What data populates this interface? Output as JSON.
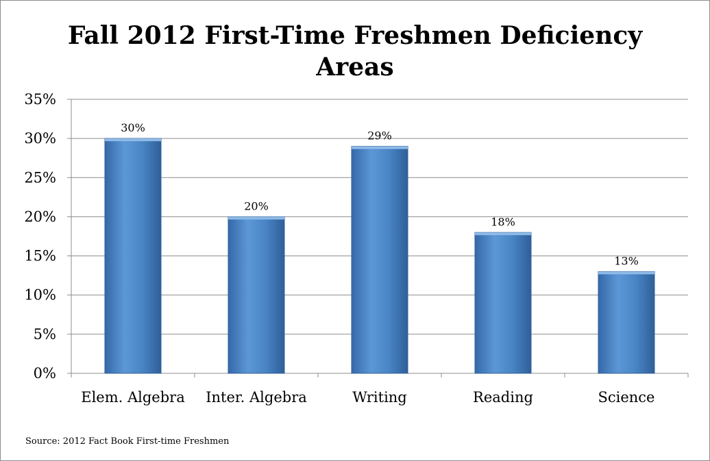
{
  "chart_data": {
    "type": "bar",
    "title_lines": [
      "Fall 2012 First-Time Freshmen Deficiency",
      "Areas"
    ],
    "categories": [
      "Elem. Algebra",
      "Inter. Algebra",
      "Writing",
      "Reading",
      "Science"
    ],
    "values": [
      30,
      20,
      29,
      18,
      13
    ],
    "data_labels": [
      "30%",
      "20%",
      "29%",
      "18%",
      "13%"
    ],
    "ylim": [
      0,
      35
    ],
    "y_ticks": [
      0,
      5,
      10,
      15,
      20,
      25,
      30,
      35
    ],
    "y_tick_labels": [
      "0%",
      "5%",
      "10%",
      "15%",
      "20%",
      "25%",
      "30%",
      "35%"
    ],
    "grid": true,
    "legend": "none",
    "colors": {
      "bar": "#4a86c6",
      "bar_edge": "#2f5f99",
      "grid": "#8c8c8c"
    }
  },
  "source_note": "Source: 2012 Fact Book First-time Freshmen"
}
